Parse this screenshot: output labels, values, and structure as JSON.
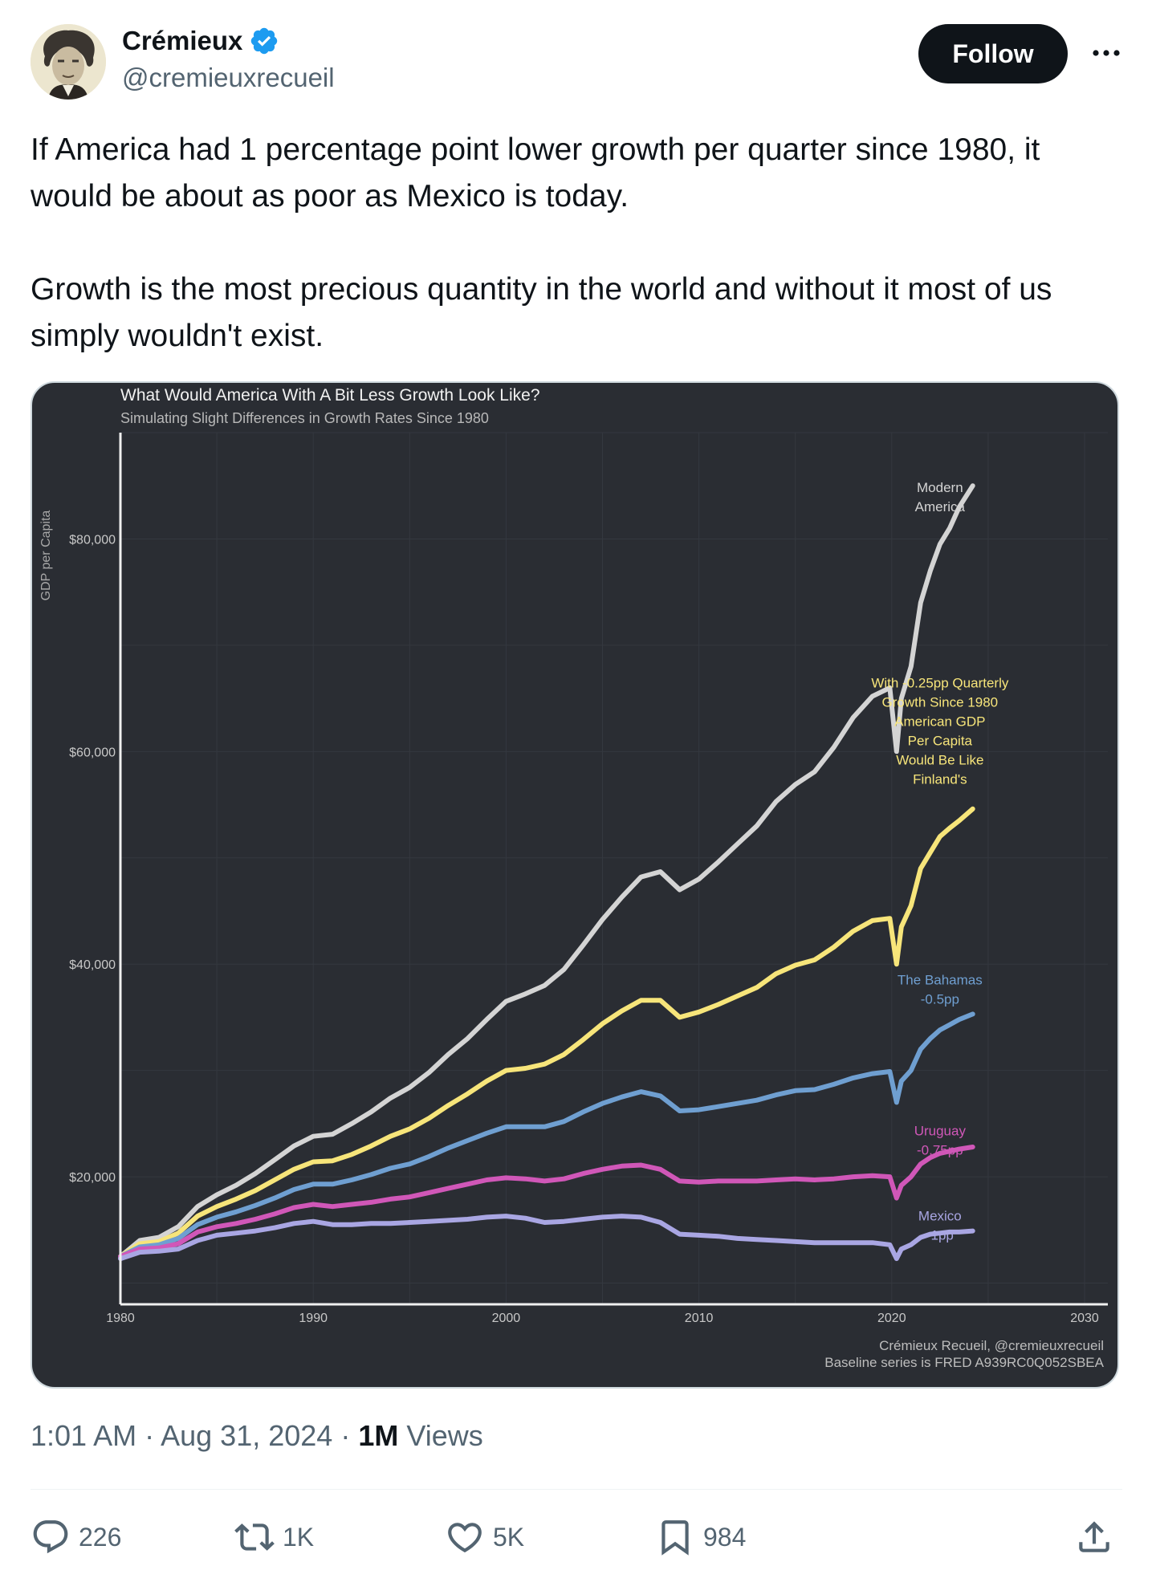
{
  "author": {
    "name": "Crémieux",
    "handle": "@cremieuxrecueil",
    "verified": true
  },
  "follow_label": "Follow",
  "tweet": {
    "paragraph1": "If America had 1 percentage point lower growth per quarter since 1980, it would be about as poor as Mexico is today.",
    "paragraph2": "Growth is the most precious quantity in the world and without it most of us simply wouldn't exist."
  },
  "chart_data": {
    "type": "line",
    "title": "What Would America With A Bit Less Growth Look Like?",
    "subtitle": "Simulating Slight Differences in Growth Rates Since 1980",
    "ylabel": "GDP per Capita",
    "xlim": [
      1980,
      2030
    ],
    "ylim": [
      8000,
      90000
    ],
    "x_ticks": [
      1980,
      1990,
      2000,
      2010,
      2020,
      2030
    ],
    "y_ticks": [
      20000,
      40000,
      60000,
      80000
    ],
    "y_tick_labels": [
      "$20,000",
      "$40,000",
      "$60,000",
      "$80,000"
    ],
    "caption_line1": "Crémieux Recueil, @cremieuxrecueil",
    "caption_line2": "Baseline series is FRED A939RC0Q052SBEA",
    "grid": true,
    "background": "#2a2d33",
    "series": [
      {
        "color": "#d4d4d4",
        "label_lines": [
          "Modern",
          "America"
        ],
        "x": [
          1980,
          1981,
          1982,
          1983,
          1984,
          1985,
          1986,
          1987,
          1988,
          1989,
          1990,
          1991,
          1992,
          1993,
          1994,
          1995,
          1996,
          1997,
          1998,
          1999,
          2000,
          2001,
          2002,
          2003,
          2004,
          2005,
          2006,
          2007,
          2008,
          2009,
          2010,
          2011,
          2012,
          2013,
          2014,
          2015,
          2016,
          2017,
          2018,
          2019,
          2019.9,
          2020.25,
          2020.5,
          2021,
          2021.5,
          2022,
          2022.5,
          2023,
          2023.5,
          2024.2
        ],
        "y": [
          12500,
          14000,
          14300,
          15300,
          17200,
          18300,
          19200,
          20300,
          21600,
          22900,
          23800,
          24000,
          25000,
          26100,
          27400,
          28400,
          29800,
          31500,
          33000,
          34800,
          36500,
          37200,
          38000,
          39500,
          41800,
          44200,
          46300,
          48200,
          48700,
          47000,
          48000,
          49600,
          51300,
          53000,
          55300,
          56900,
          58100,
          60400,
          63200,
          65200,
          66000,
          60000,
          65000,
          68000,
          74000,
          77000,
          79500,
          81000,
          83000,
          85000
        ]
      },
      {
        "color": "#f7e57a",
        "label_lines": [
          "With -0.25pp Quarterly",
          "Growth Since 1980",
          "American GDP",
          "Per Capita",
          "Would Be Like",
          "Finland's"
        ],
        "x": [
          1980,
          1981,
          1982,
          1983,
          1984,
          1985,
          1986,
          1987,
          1988,
          1989,
          1990,
          1991,
          1992,
          1993,
          1994,
          1995,
          1996,
          1997,
          1998,
          1999,
          2000,
          2001,
          2002,
          2003,
          2004,
          2005,
          2006,
          2007,
          2008,
          2009,
          2010,
          2011,
          2012,
          2013,
          2014,
          2015,
          2016,
          2017,
          2018,
          2019,
          2019.9,
          2020.25,
          2020.5,
          2021,
          2021.5,
          2022,
          2022.5,
          2023,
          2023.5,
          2024.2
        ],
        "y": [
          12500,
          13700,
          13900,
          14700,
          16300,
          17200,
          17900,
          18700,
          19700,
          20700,
          21400,
          21500,
          22100,
          22900,
          23800,
          24500,
          25500,
          26700,
          27800,
          29000,
          30000,
          30200,
          30600,
          31500,
          32900,
          34400,
          35600,
          36600,
          36600,
          35000,
          35500,
          36200,
          37000,
          37800,
          39100,
          39900,
          40400,
          41600,
          43100,
          44100,
          44300,
          40000,
          43500,
          45500,
          49000,
          50500,
          52000,
          52800,
          53500,
          54600
        ]
      },
      {
        "color": "#6f9fd1",
        "label_lines": [
          "The Bahamas",
          "-0.5pp"
        ],
        "x": [
          1980,
          1981,
          1982,
          1983,
          1984,
          1985,
          1986,
          1987,
          1988,
          1989,
          1990,
          1991,
          1992,
          1993,
          1994,
          1995,
          1996,
          1997,
          1998,
          1999,
          2000,
          2001,
          2002,
          2003,
          2004,
          2005,
          2006,
          2007,
          2008,
          2009,
          2010,
          2011,
          2012,
          2013,
          2014,
          2015,
          2016,
          2017,
          2018,
          2019,
          2019.9,
          2020.25,
          2020.5,
          2021,
          2021.5,
          2022,
          2022.5,
          2023,
          2023.5,
          2024.2
        ],
        "y": [
          12500,
          13400,
          13600,
          14200,
          15500,
          16200,
          16700,
          17300,
          18000,
          18800,
          19300,
          19300,
          19700,
          20200,
          20800,
          21200,
          21900,
          22700,
          23400,
          24100,
          24700,
          24700,
          24700,
          25200,
          26100,
          26900,
          27500,
          28000,
          27600,
          26200,
          26300,
          26600,
          26900,
          27200,
          27700,
          28100,
          28200,
          28700,
          29300,
          29700,
          29900,
          27000,
          29000,
          30000,
          32000,
          33000,
          33800,
          34300,
          34800,
          35300
        ]
      },
      {
        "color": "#d057b8",
        "label_lines": [
          "Uruguay",
          "-0.75pp"
        ],
        "x": [
          1980,
          1981,
          1982,
          1983,
          1984,
          1985,
          1986,
          1987,
          1988,
          1989,
          1990,
          1991,
          1992,
          1993,
          1994,
          1995,
          1996,
          1997,
          1998,
          1999,
          2000,
          2001,
          2002,
          2003,
          2004,
          2005,
          2006,
          2007,
          2008,
          2009,
          2010,
          2011,
          2012,
          2013,
          2014,
          2015,
          2016,
          2017,
          2018,
          2019,
          2019.9,
          2020.25,
          2020.5,
          2021,
          2021.5,
          2022,
          2022.5,
          2023,
          2023.5,
          2024.2
        ],
        "y": [
          12500,
          13200,
          13300,
          13700,
          14800,
          15300,
          15600,
          16000,
          16500,
          17100,
          17400,
          17200,
          17400,
          17600,
          17900,
          18100,
          18500,
          18900,
          19300,
          19700,
          19900,
          19800,
          19600,
          19800,
          20300,
          20700,
          21000,
          21100,
          20700,
          19600,
          19500,
          19600,
          19600,
          19600,
          19700,
          19800,
          19700,
          19800,
          20000,
          20100,
          20000,
          18000,
          19200,
          20000,
          21200,
          21800,
          22200,
          22400,
          22600,
          22800
        ]
      },
      {
        "color": "#a9a6e3",
        "label_lines": [
          "Mexico",
          "-1pp"
        ],
        "x": [
          1980,
          1981,
          1982,
          1983,
          1984,
          1985,
          1986,
          1987,
          1988,
          1989,
          1990,
          1991,
          1992,
          1993,
          1994,
          1995,
          1996,
          1997,
          1998,
          1999,
          2000,
          2001,
          2002,
          2003,
          2004,
          2005,
          2006,
          2007,
          2008,
          2009,
          2010,
          2011,
          2012,
          2013,
          2014,
          2015,
          2016,
          2017,
          2018,
          2019,
          2019.9,
          2020.25,
          2020.5,
          2021,
          2021.5,
          2022,
          2022.5,
          2023,
          2023.5,
          2024.2
        ],
        "y": [
          12300,
          12900,
          13000,
          13200,
          14000,
          14500,
          14700,
          14900,
          15200,
          15600,
          15800,
          15500,
          15500,
          15600,
          15600,
          15700,
          15800,
          15900,
          16000,
          16200,
          16300,
          16100,
          15700,
          15800,
          16000,
          16200,
          16300,
          16200,
          15700,
          14600,
          14500,
          14400,
          14200,
          14100,
          14000,
          13900,
          13800,
          13800,
          13800,
          13800,
          13600,
          12300,
          13200,
          13600,
          14300,
          14600,
          14700,
          14800,
          14800,
          14900
        ]
      }
    ]
  },
  "meta": {
    "time": "1:01 AM",
    "date": "Aug 31, 2024",
    "views_count": "1M",
    "views_label": "Views",
    "separator": "·"
  },
  "actions": {
    "replies": "226",
    "reposts": "1K",
    "likes": "5K",
    "bookmarks": "984"
  },
  "icons": {
    "reply": "reply-icon",
    "repost": "repost-icon",
    "like": "heart-icon",
    "bookmark": "bookmark-icon",
    "share": "share-icon",
    "more": "more-icon",
    "verified": "verified-badge-icon"
  },
  "colors": {
    "verified_blue": "#1d9bf0",
    "follow_bg": "#0f1419",
    "secondary_text": "#536471"
  }
}
